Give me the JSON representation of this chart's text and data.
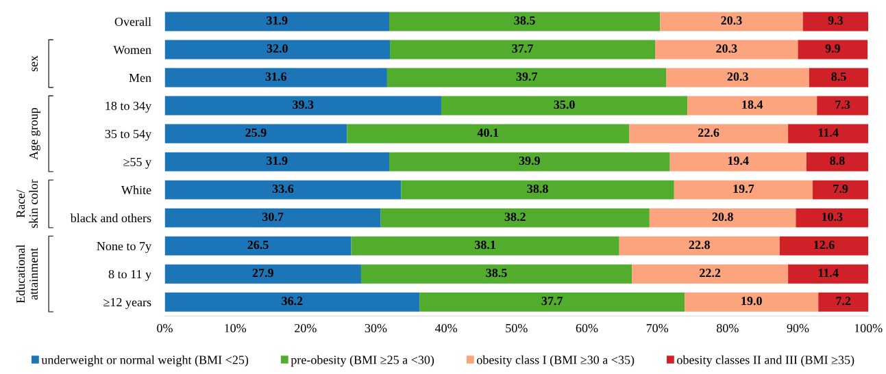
{
  "chart_data": {
    "type": "bar",
    "orientation": "horizontal",
    "stacked": true,
    "grid": false,
    "legend": "bottom",
    "categories": [
      "Overall",
      "Women",
      "Men",
      "18 to 34y",
      "35 to 54y",
      "≥55 y",
      "White",
      "black and others",
      "None to 7y",
      "8 to 11 y",
      "≥12 years"
    ],
    "series": [
      {
        "name": "underweight or normal weight (BMI <25)",
        "color": "#1b75b6",
        "values": [
          31.9,
          32.0,
          31.6,
          39.3,
          25.9,
          31.9,
          33.6,
          30.7,
          26.5,
          27.9,
          36.2
        ],
        "value_labels": [
          "31.9",
          "32.0",
          "31.6",
          "39.3",
          "25.9",
          "31.9",
          "33.6",
          "30.7",
          "26.5",
          "27.9",
          "36.2"
        ]
      },
      {
        "name": "pre-obesity (BMI ≥25 a <30)",
        "color": "#52ad2e",
        "values": [
          38.5,
          37.7,
          39.7,
          35.0,
          40.1,
          39.9,
          38.8,
          38.2,
          38.1,
          38.5,
          37.7
        ],
        "value_labels": [
          "38.5",
          "37.7",
          "39.7",
          "35.0",
          "40.1",
          "39.9",
          "38.8",
          "38.2",
          "38.1",
          "38.5",
          "37.7"
        ]
      },
      {
        "name": "obesity class I (BMI ≥30 a <35)",
        "color": "#fca47e",
        "values": [
          20.3,
          20.3,
          20.3,
          18.4,
          22.6,
          19.4,
          19.7,
          20.8,
          22.8,
          22.2,
          19.0
        ],
        "value_labels": [
          "20.3",
          "20.3",
          "20.3",
          "18.4",
          "22.6",
          "19.4",
          "19.7",
          "20.8",
          "22.8",
          "22.2",
          "19.0"
        ]
      },
      {
        "name": "obesity classes II and III (BMI ≥35)",
        "color": "#d02128",
        "values": [
          9.3,
          9.9,
          8.5,
          7.3,
          11.4,
          8.8,
          7.9,
          10.3,
          12.6,
          11.4,
          7.2
        ],
        "value_labels": [
          "9.3",
          "9.9",
          "8.5",
          "7.3",
          "11.4",
          "8.8",
          "7.9",
          "10.3",
          "12.6",
          "11.4",
          "7.2"
        ]
      }
    ],
    "xlim": [
      0,
      100
    ],
    "xticks": [
      {
        "value": 0,
        "label": "0%"
      },
      {
        "value": 10,
        "label": "10%"
      },
      {
        "value": 20,
        "label": "20%"
      },
      {
        "value": 30,
        "label": "30%"
      },
      {
        "value": 40,
        "label": "40%"
      },
      {
        "value": 50,
        "label": "50%"
      },
      {
        "value": 60,
        "label": "60%"
      },
      {
        "value": 70,
        "label": "70%"
      },
      {
        "value": 80,
        "label": "80%"
      },
      {
        "value": 90,
        "label": "90%"
      },
      {
        "value": 100,
        "label": "100%"
      }
    ],
    "annotations": [
      "sex",
      "Age group",
      "Race/\nskin color",
      "Educational\nattainment"
    ]
  }
}
